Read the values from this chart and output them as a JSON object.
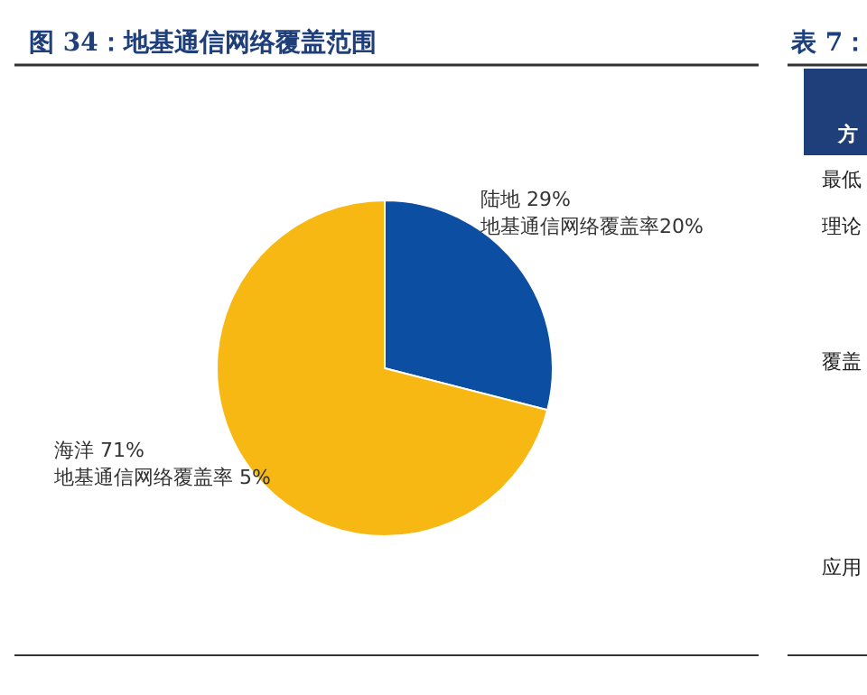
{
  "chart_data": {
    "type": "pie",
    "title": "图 34：地基通信网络覆盖范围",
    "categories": [
      "陆地",
      "海洋"
    ],
    "values": [
      29,
      71
    ],
    "value_labels": [
      "29%",
      "71%"
    ],
    "colors": [
      "#0b4ea2",
      "#f8b814"
    ],
    "annotations": [
      {
        "text": "地基通信网络覆盖率20%",
        "x": "陆地"
      },
      {
        "text": "地基通信网络覆盖率 5%",
        "x": "海洋"
      },
      "表 7：",
      "方",
      "最低",
      "理论",
      "覆盖",
      "应用"
    ]
  }
}
